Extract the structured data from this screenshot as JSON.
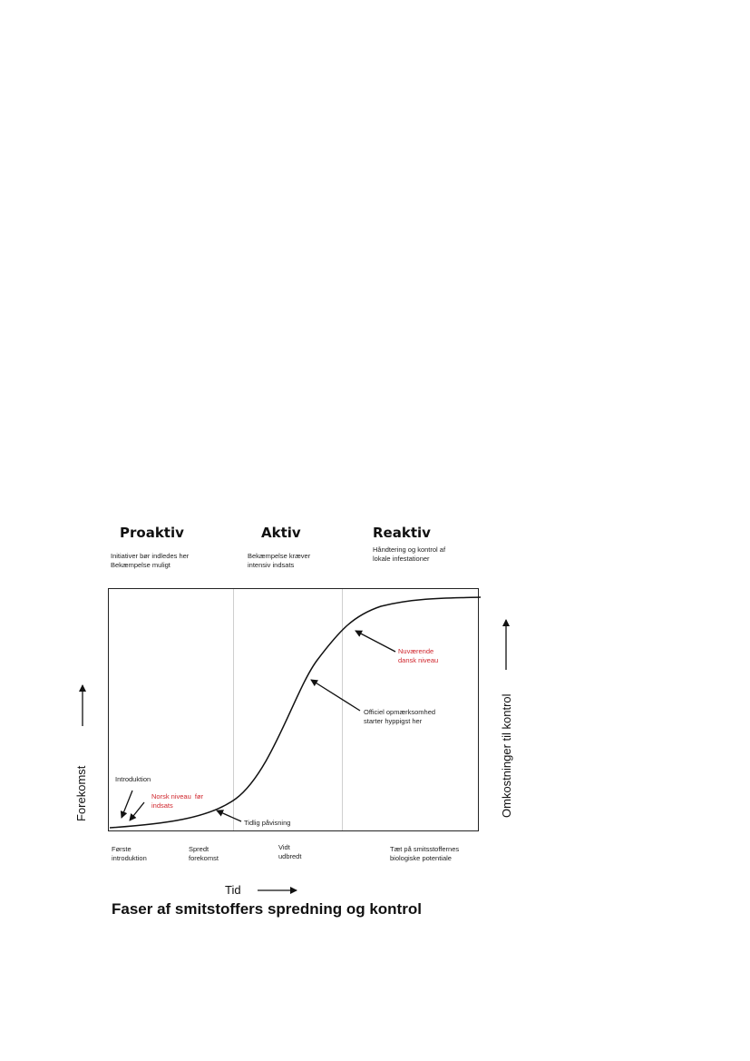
{
  "phases": {
    "proactive": {
      "title": "Proaktiv",
      "desc": "Initiativer bør indledes her\nBekæmpelse muligt"
    },
    "active": {
      "title": "Aktiv",
      "desc": "Bekæmpelse kræver\nintensiv indsats"
    },
    "reactive": {
      "title": "Reaktiv",
      "desc": "Håndtering og kontrol af\nlokale infestationer"
    }
  },
  "annotations": {
    "introduction": "Introduktion",
    "norwegian_level": "Norsk niveau  før\nindsats",
    "early_detection": "Tidlig påvisning",
    "official_attention": "Officiel opmærksomhed\nstarter hyppigst her",
    "danish_level": "Nuværende\ndansk niveau"
  },
  "stages": {
    "first": "Første\nintroduktion",
    "scattered": "Spredt\nforekomst",
    "widespread": "Vidt\nudbredt",
    "saturated": "Tæt på smitsstoffernes\nbiologiske potentiale"
  },
  "axes": {
    "x_label": "Tid",
    "y_left_label": "Forekomst",
    "y_right_label": "Omkostninger til kontrol"
  },
  "caption": "Faser af smitstoffers spredning og kontrol",
  "colors": {
    "highlight": "#d0262d",
    "line": "#111111",
    "divider": "#cfcfcf"
  }
}
